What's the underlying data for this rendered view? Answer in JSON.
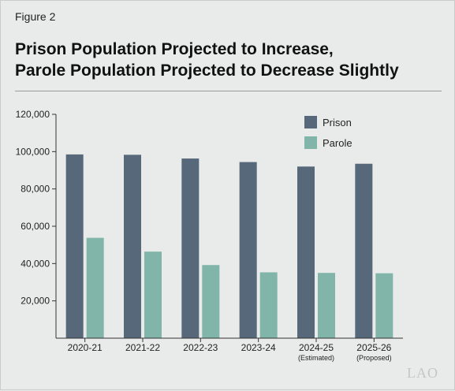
{
  "figure_label": "Figure 2",
  "title_lines": [
    "Prison Population Projected to Increase,",
    "Parole Population Projected to Decrease Slightly"
  ],
  "logo": "LAO",
  "colors": {
    "prison": "#566879",
    "parole": "#82b5a9",
    "axis": "#333333"
  },
  "chart_data": {
    "type": "bar",
    "categories": [
      "2020-21",
      "2021-22",
      "2022-23",
      "2023-24",
      "2024-25",
      "2025-26"
    ],
    "category_sublabels": [
      "",
      "",
      "",
      "",
      "(Estimated)",
      "(Proposed)"
    ],
    "series": [
      {
        "name": "Prison",
        "values": [
          98500,
          98300,
          96300,
          94400,
          92000,
          93500
        ]
      },
      {
        "name": "Parole",
        "values": [
          53800,
          46400,
          39200,
          35300,
          35000,
          34800
        ]
      }
    ],
    "ylim": [
      0,
      120000
    ],
    "yticks": [
      20000,
      40000,
      60000,
      80000,
      100000,
      120000
    ],
    "ytick_labels": [
      "20,000",
      "40,000",
      "60,000",
      "80,000",
      "100,000",
      "120,000"
    ],
    "legend_position": "top-right",
    "grid": false
  }
}
